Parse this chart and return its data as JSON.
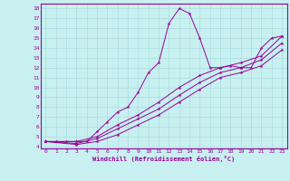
{
  "xlabel": "Windchill (Refroidissement éolien,°C)",
  "background_color": "#c8f0f0",
  "line_color": "#990099",
  "grid_color": "#aadddd",
  "xlim": [
    -0.5,
    23.5
  ],
  "ylim": [
    3.8,
    18.5
  ],
  "xticks": [
    0,
    1,
    2,
    3,
    4,
    5,
    6,
    7,
    8,
    9,
    10,
    11,
    12,
    13,
    14,
    15,
    16,
    17,
    18,
    19,
    20,
    21,
    22,
    23
  ],
  "yticks": [
    4,
    5,
    6,
    7,
    8,
    9,
    10,
    11,
    12,
    13,
    14,
    15,
    16,
    17,
    18
  ],
  "series": [
    {
      "x": [
        0,
        1,
        2,
        3,
        4,
        5,
        6,
        7,
        8,
        9,
        10,
        11,
        12,
        13,
        14,
        15,
        16,
        17,
        18,
        19,
        20,
        21,
        22,
        23
      ],
      "y": [
        4.5,
        4.5,
        4.5,
        4.5,
        4.5,
        5.5,
        6.5,
        7.5,
        8.0,
        9.5,
        11.5,
        12.5,
        16.5,
        18.0,
        17.5,
        15.0,
        12.0,
        12.0,
        12.2,
        12.0,
        12.0,
        14.0,
        15.0,
        15.2
      ]
    },
    {
      "x": [
        0,
        3,
        5,
        7,
        9,
        11,
        13,
        15,
        17,
        19,
        21,
        23
      ],
      "y": [
        4.5,
        4.5,
        5.0,
        6.2,
        7.2,
        8.5,
        10.0,
        11.2,
        12.0,
        12.5,
        13.2,
        15.2
      ]
    },
    {
      "x": [
        0,
        3,
        5,
        7,
        9,
        11,
        13,
        15,
        17,
        19,
        21,
        23
      ],
      "y": [
        4.5,
        4.3,
        4.8,
        5.8,
        6.8,
        7.8,
        9.2,
        10.5,
        11.5,
        12.0,
        12.8,
        14.5
      ]
    },
    {
      "x": [
        0,
        3,
        5,
        7,
        9,
        11,
        13,
        15,
        17,
        19,
        21,
        23
      ],
      "y": [
        4.5,
        4.2,
        4.5,
        5.2,
        6.2,
        7.2,
        8.5,
        9.8,
        11.0,
        11.5,
        12.2,
        13.8
      ]
    }
  ]
}
